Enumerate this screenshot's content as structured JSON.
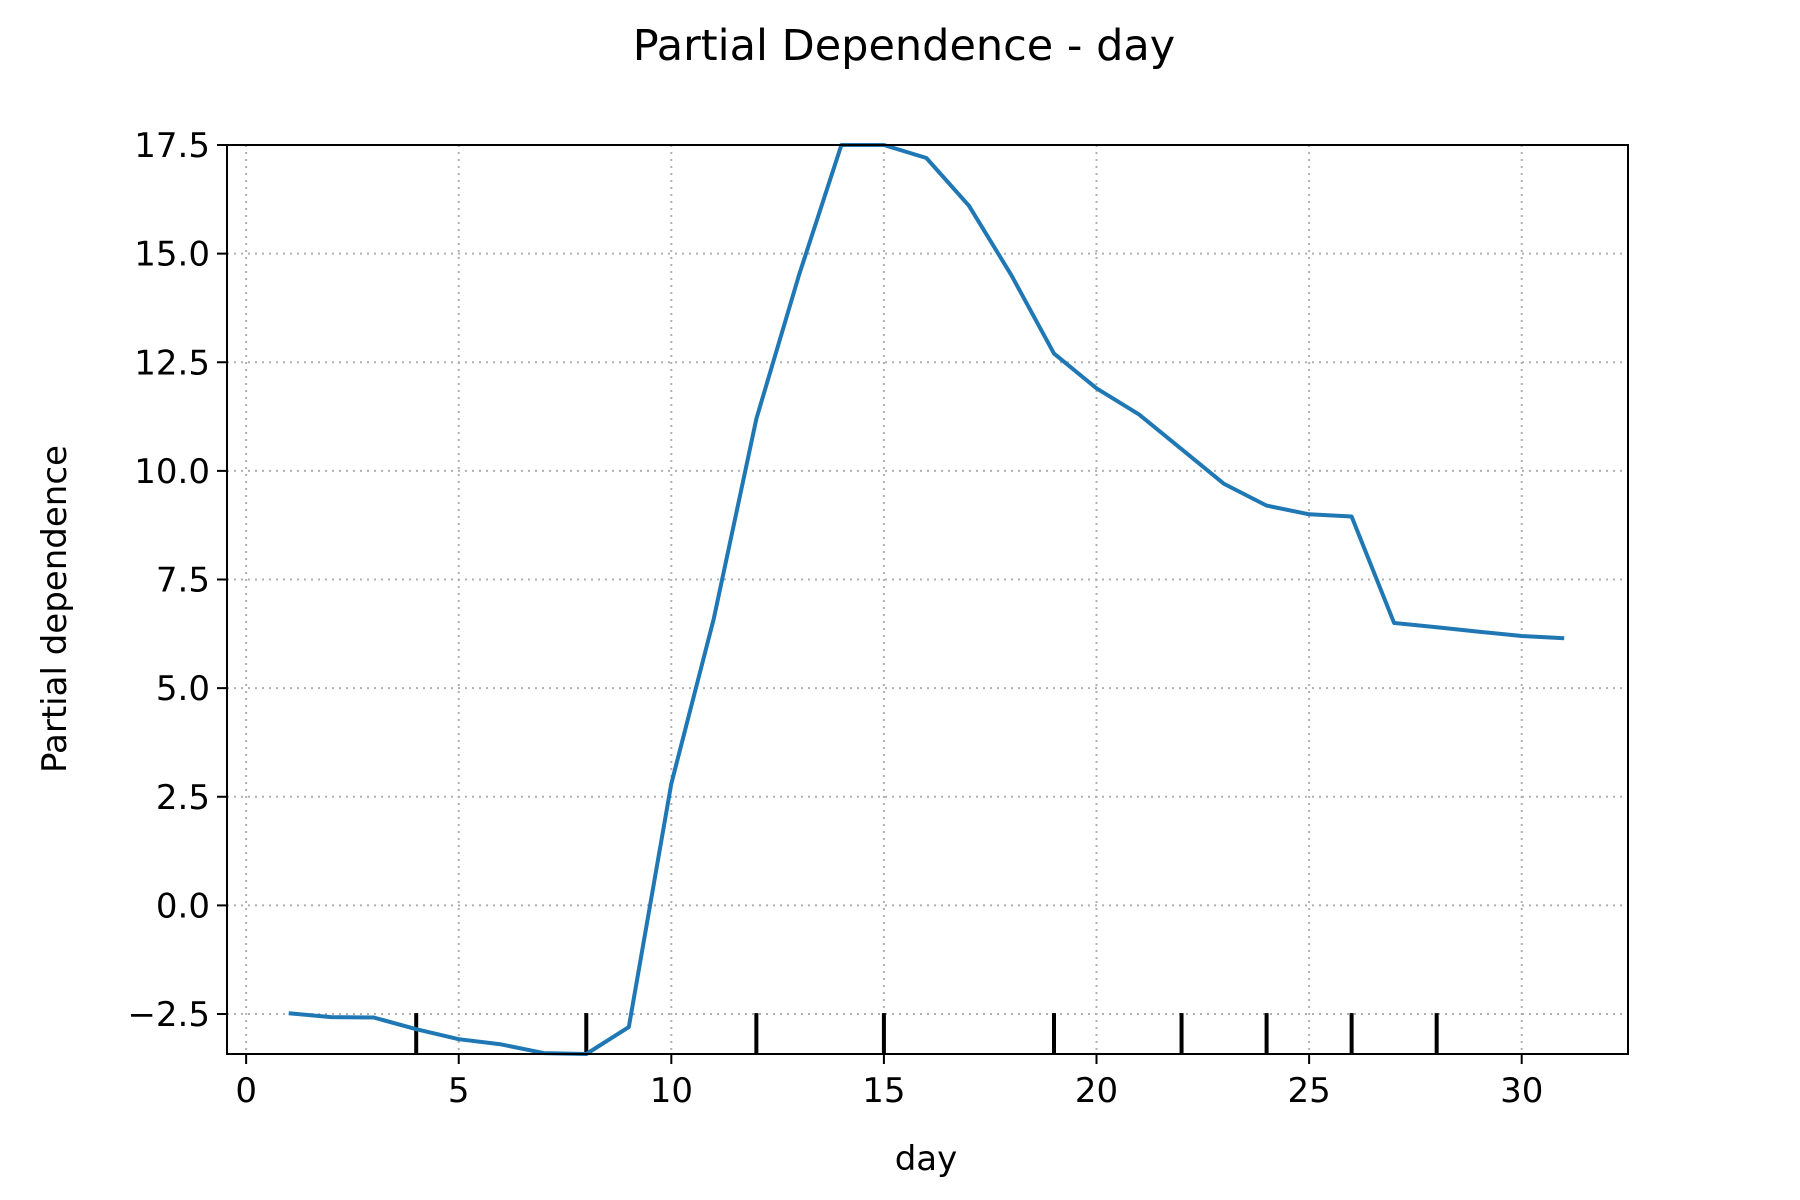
{
  "chart_data": {
    "type": "line",
    "title": "Partial Dependence - day",
    "xlabel": "day",
    "ylabel": "Partial dependence",
    "xlim": [
      -0.45,
      32.5
    ],
    "ylim": [
      -3.42,
      17.5
    ],
    "xticks": [
      0,
      5,
      10,
      15,
      20,
      25,
      30
    ],
    "xtick_labels": [
      "0",
      "5",
      "10",
      "15",
      "20",
      "25",
      "30"
    ],
    "yticks": [
      -2.5,
      0.0,
      2.5,
      5.0,
      7.5,
      10.0,
      12.5,
      15.0,
      17.5
    ],
    "ytick_labels": [
      "−2.5",
      "0.0",
      "2.5",
      "5.0",
      "7.5",
      "10.0",
      "12.5",
      "15.0",
      "17.5"
    ],
    "grid": true,
    "line_color": "#1f77b4",
    "series": [
      {
        "x": [
          1,
          2,
          3,
          4,
          5,
          6,
          7,
          8,
          9,
          10,
          11,
          12,
          13,
          14,
          15,
          16,
          17,
          18,
          19,
          20,
          21,
          22,
          23,
          24,
          25,
          26,
          27,
          28,
          29,
          30,
          31
        ],
        "values": [
          -2.48,
          -2.57,
          -2.58,
          -2.85,
          -3.08,
          -3.2,
          -3.4,
          -3.42,
          -2.8,
          2.8,
          6.6,
          11.2,
          14.5,
          17.6,
          17.6,
          17.2,
          16.1,
          14.5,
          12.7,
          11.9,
          11.3,
          10.5,
          9.7,
          9.2,
          9.0,
          8.95,
          6.5,
          6.4,
          6.3,
          6.2,
          6.15
        ]
      }
    ],
    "rug_x": [
      4,
      8,
      12,
      15,
      19,
      22,
      24,
      26,
      28
    ]
  }
}
